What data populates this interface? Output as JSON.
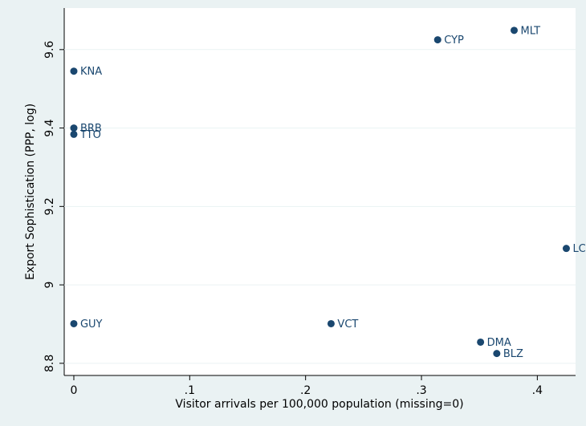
{
  "chart_data": {
    "type": "scatter",
    "x_label": "Visitor arrivals per 100,000 population (missing=0)",
    "y_label": "Export Sophistication (PPP, log)",
    "labels": [
      "MLT",
      "CYP",
      "KNA",
      "BRB",
      "TTO",
      "LC",
      "GUY",
      "VCT",
      "DMA",
      "BLZ"
    ],
    "x": [
      0.38,
      0.314,
      0,
      0,
      0,
      0.425,
      0,
      0.222,
      0.351,
      0.365
    ],
    "y": [
      9.649,
      9.625,
      9.545,
      9.4,
      9.384,
      9.093,
      8.901,
      8.901,
      8.854,
      8.825
    ],
    "color": "#1a476f",
    "xlim": [
      -0.0083,
      0.433
    ],
    "ylim": [
      8.769,
      9.706
    ],
    "xticks": [
      0,
      {
        "value": 0.1,
        "label": ".1"
      },
      {
        "value": 0.2,
        "label": ".2"
      },
      {
        "value": 0.3,
        "label": ".3"
      },
      {
        "value": 0.4,
        "label": ".4"
      }
    ],
    "yticks": [
      8.8,
      9,
      9.2,
      9.4,
      9.6
    ],
    "grid": true
  }
}
